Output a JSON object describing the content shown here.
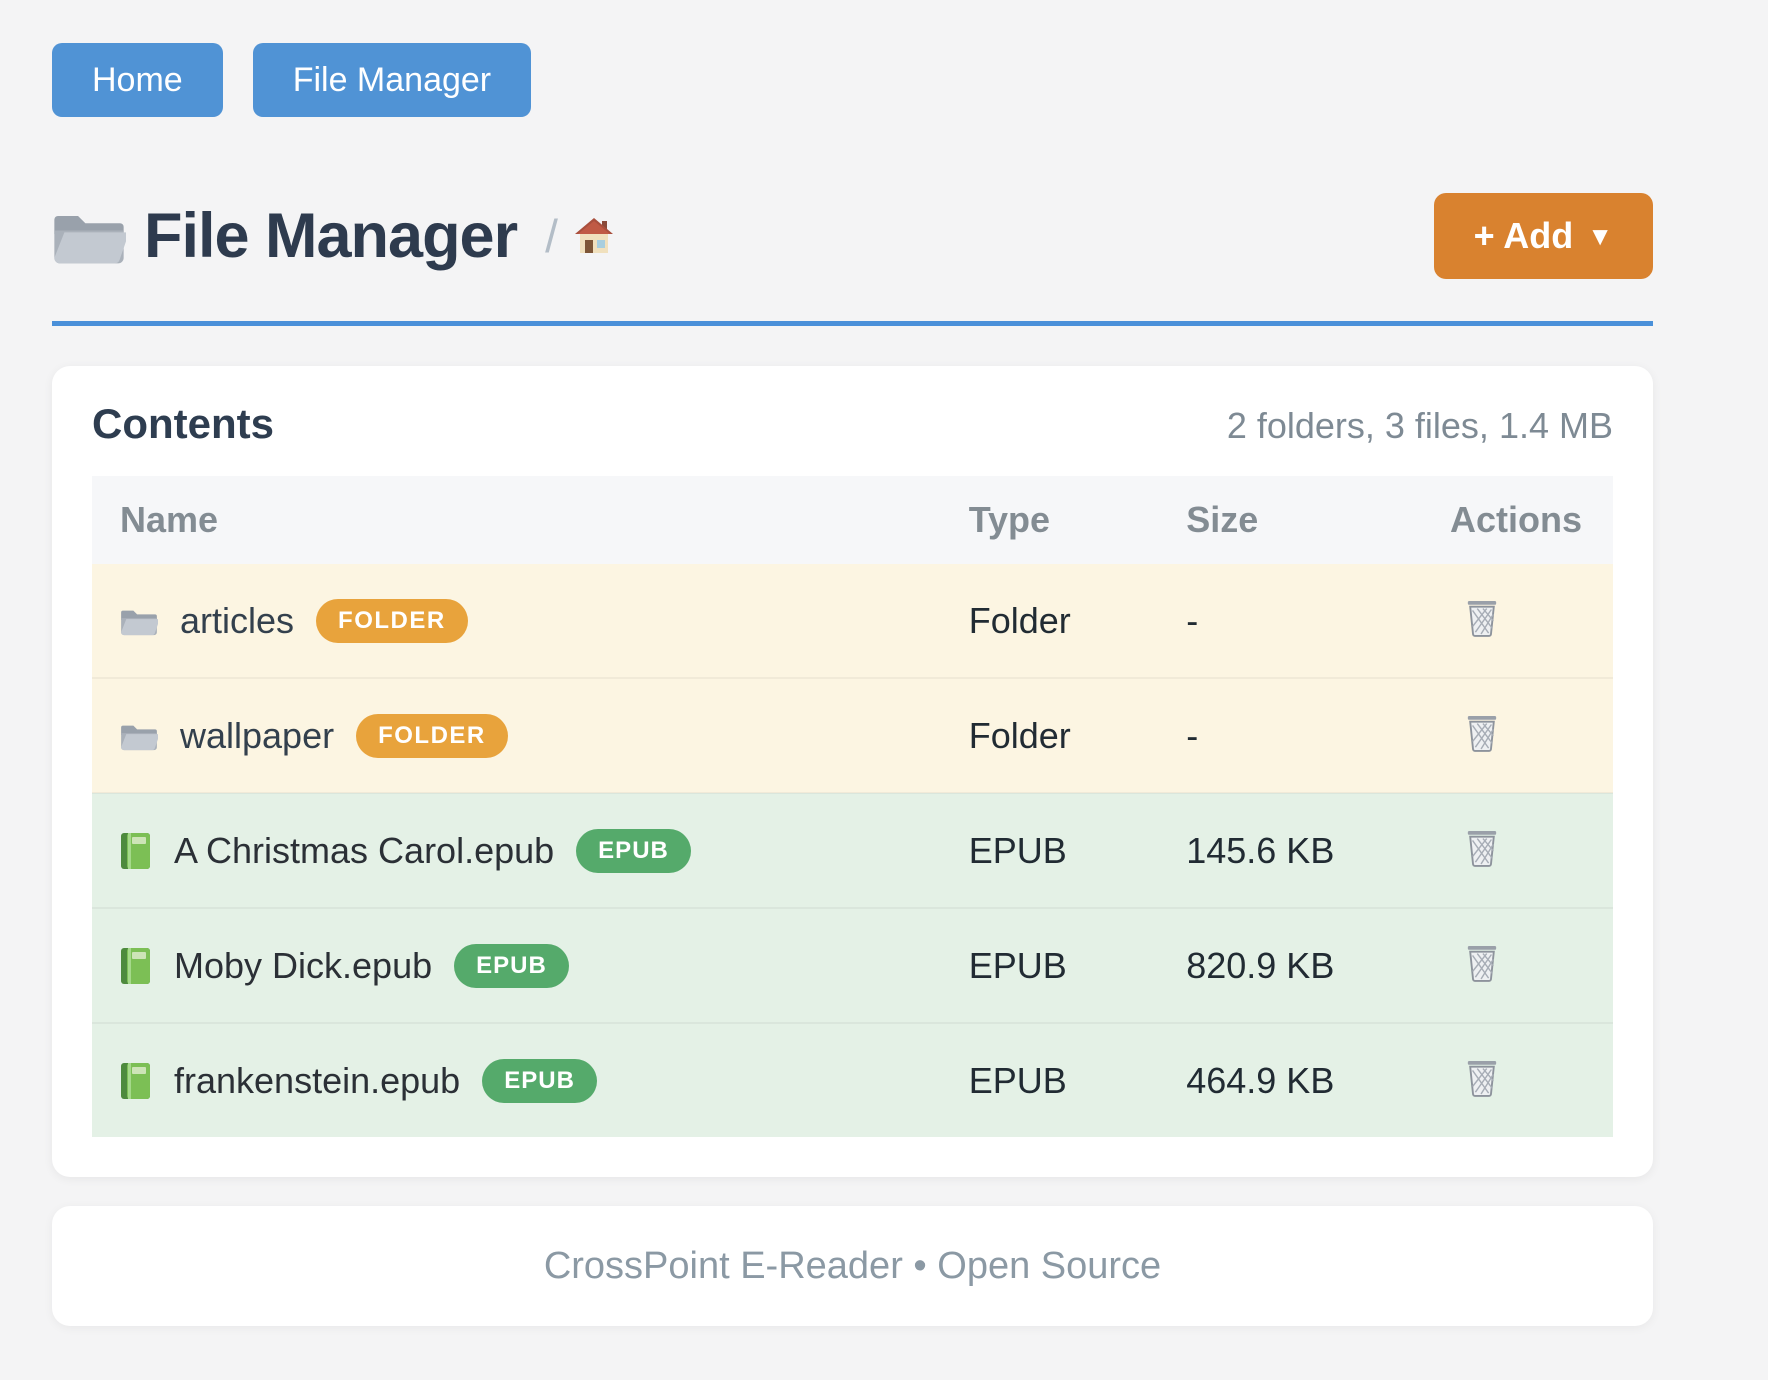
{
  "nav": {
    "home_label": "Home",
    "file_manager_label": "File Manager"
  },
  "header": {
    "title": "File Manager",
    "breadcrumb_separator": "/",
    "breadcrumb_home_icon": "house-icon",
    "add_label": "+ Add",
    "add_caret": "▼"
  },
  "contents": {
    "heading": "Contents",
    "summary": "2 folders, 3 files, 1.4 MB",
    "columns": [
      "Name",
      "Type",
      "Size",
      "Actions"
    ],
    "rows": [
      {
        "kind": "folder",
        "icon": "folder-icon",
        "name": "articles",
        "badge": "FOLDER",
        "type": "Folder",
        "size": "-"
      },
      {
        "kind": "folder",
        "icon": "folder-icon",
        "name": "wallpaper",
        "badge": "FOLDER",
        "type": "Folder",
        "size": "-"
      },
      {
        "kind": "epub",
        "icon": "book-icon",
        "name": "A Christmas Carol.epub",
        "badge": "EPUB",
        "type": "EPUB",
        "size": "145.6 KB"
      },
      {
        "kind": "epub",
        "icon": "book-icon",
        "name": "Moby Dick.epub",
        "badge": "EPUB",
        "type": "EPUB",
        "size": "820.9 KB"
      },
      {
        "kind": "epub",
        "icon": "book-icon",
        "name": "frankenstein.epub",
        "badge": "EPUB",
        "type": "EPUB",
        "size": "464.9 KB"
      }
    ]
  },
  "footer": {
    "text": "CrossPoint E-Reader • Open Source"
  },
  "colors": {
    "page_bg": "#f4f4f5",
    "primary_blue": "#5093d5",
    "underline_blue": "#4a90d9",
    "accent_orange": "#d9822f",
    "badge_orange": "#e8a33c",
    "badge_green": "#55aa6b",
    "row_folder_bg": "#fcf5e2",
    "row_epub_bg": "#e4f1e6",
    "table_header_bg": "#f6f7f9",
    "title_color": "#2e3b4e"
  }
}
